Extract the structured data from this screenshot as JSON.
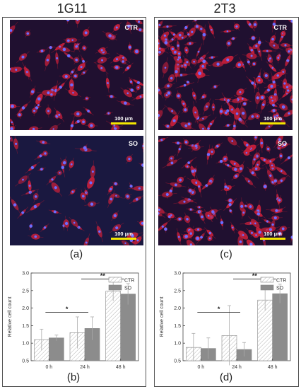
{
  "columns": [
    {
      "title": "1G11",
      "micro_labels": [
        "CTR",
        "SO"
      ],
      "scale_label": "100 μm",
      "sub_labels": [
        "(a)",
        "(b)"
      ]
    },
    {
      "title": "2T3",
      "micro_labels": [
        "CTR",
        "SO"
      ],
      "scale_label": "100 μm",
      "sub_labels": [
        "(c)",
        "(d)"
      ]
    }
  ],
  "colors": {
    "ctr": "hatched-white",
    "so": "#8c8c8c",
    "cell_red": "#c8203c",
    "nucleus": "#6c6cff",
    "background": "#201030"
  },
  "chart_data": [
    {
      "type": "bar",
      "categories": [
        "0 h",
        "24 h",
        "48 h"
      ],
      "series": [
        {
          "name": "CTR",
          "values": [
            1.1,
            1.3,
            2.48
          ],
          "errors": [
            0.3,
            0.45,
            0.28
          ]
        },
        {
          "name": "SO",
          "values": [
            1.15,
            1.42,
            2.4
          ],
          "errors": [
            0.08,
            0.33,
            0.3
          ]
        }
      ],
      "ylabel": "Relative cell count",
      "ylim": [
        0.5,
        3.0
      ],
      "yticks": [
        "0.5",
        "1.0",
        "1.5",
        "2.0",
        "2.5",
        "3.0"
      ],
      "significance": [
        {
          "from": "0 h",
          "to": "24 h",
          "mark": "*"
        },
        {
          "from": "24 h",
          "to": "48 h",
          "mark": "**"
        }
      ],
      "legend_position": "top-right"
    },
    {
      "type": "bar",
      "categories": [
        "0 h",
        "24 h",
        "48 h"
      ],
      "series": [
        {
          "name": "CTR",
          "values": [
            0.88,
            1.22,
            2.23
          ],
          "errors": [
            0.4,
            0.85,
            0.3
          ]
        },
        {
          "name": "SO",
          "values": [
            0.85,
            0.82,
            2.41
          ],
          "errors": [
            0.3,
            0.2,
            0.27
          ]
        }
      ],
      "ylabel": "Relative cell count",
      "ylim": [
        0.5,
        3.0
      ],
      "yticks": [
        "0.5",
        "1.0",
        "1.5",
        "2.0",
        "2.5",
        "3.0"
      ],
      "significance": [
        {
          "from": "0 h",
          "to": "24 h",
          "mark": "*"
        },
        {
          "from": "24 h",
          "to": "48 h",
          "mark": "**"
        }
      ],
      "legend_position": "top-right"
    }
  ]
}
